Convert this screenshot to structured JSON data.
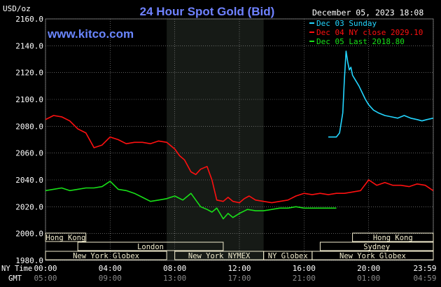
{
  "header": {
    "unit_label": "USD/oz",
    "title": "24 Hour Spot Gold (Bid)",
    "datetime": "December 05, 2023 18:08",
    "site": "www.kitco.com"
  },
  "colors": {
    "background": "#000000",
    "grid": "#9a9a9a",
    "title": "#6f82ff",
    "site": "#6a86ff",
    "shade_night": "#161a16",
    "session_box_fill": "#f3eecf",
    "dec03": "#23d6ff",
    "dec04": "#ff1010",
    "dec05": "#18e018"
  },
  "labels": {
    "ny_time": "NY Time",
    "gmt": "GMT"
  },
  "sessions": [
    {
      "row": 0,
      "name": "Hong Kong",
      "start": 0.0,
      "end": 2.5
    },
    {
      "row": 0,
      "name": "Hong Kong",
      "start": 19.0,
      "end": 24.0
    },
    {
      "row": 1,
      "name": "London",
      "start": 2.0,
      "end": 11.0
    },
    {
      "row": 1,
      "name": "Sydney",
      "start": 17.0,
      "end": 24.0
    },
    {
      "row": 2,
      "name": "New York Globex",
      "start": 0.0,
      "end": 7.5
    },
    {
      "row": 2,
      "name": "New York NYMEX",
      "start": 8.0,
      "end": 13.5
    },
    {
      "row": 2,
      "name": "NY Globex",
      "start": 13.5,
      "end": 16.5
    },
    {
      "row": 2,
      "name": "New York Globex",
      "start": 16.5,
      "end": 24.0
    }
  ],
  "chart_data": {
    "type": "line",
    "title": "24 Hour Spot Gold (Bid)",
    "ylabel": "USD/oz",
    "xlabel": "",
    "ylim": [
      1980,
      2160
    ],
    "xlim": [
      0,
      24
    ],
    "yticks": [
      "1980.0",
      "2000.0",
      "2020.0",
      "2040.0",
      "2060.0",
      "2080.0",
      "2100.0",
      "2120.0",
      "2140.0",
      "2160.0"
    ],
    "xticks_ny": [
      "00:00",
      "04:00",
      "08:00",
      "12:00",
      "16:00",
      "20:00",
      "23:59"
    ],
    "xticks_gmt": [
      "05:00",
      "09:00",
      "13:00",
      "17:00",
      "21:00",
      "01:00",
      "04:59"
    ],
    "shaded_hours": [
      7.5,
      13.5
    ],
    "grid": true,
    "legend_position": "top-right",
    "series": [
      {
        "name": "Dec 03 Sunday",
        "legend": "Dec 03 Sunday",
        "x": [
          17.5,
          18.0,
          18.2,
          18.4,
          18.5,
          18.6,
          18.7,
          18.8,
          18.9,
          19.0,
          19.2,
          19.4,
          19.6,
          19.8,
          20.0,
          20.3,
          20.6,
          21.0,
          21.4,
          21.8,
          22.2,
          22.6,
          23.0,
          23.3,
          23.6,
          23.99
        ],
        "y": [
          2072,
          2072,
          2075,
          2090,
          2115,
          2136,
          2128,
          2122,
          2124,
          2118,
          2114,
          2110,
          2105,
          2100,
          2096,
          2092,
          2090,
          2088,
          2087,
          2086,
          2088,
          2086,
          2085,
          2084,
          2085,
          2086
        ]
      },
      {
        "name": "Dec 04 NY close 2029.10",
        "legend": "Dec 04 NY close 2029.10",
        "x": [
          0.0,
          0.5,
          1.0,
          1.5,
          2.0,
          2.5,
          3.0,
          3.5,
          4.0,
          4.5,
          5.0,
          5.5,
          6.0,
          6.5,
          7.0,
          7.5,
          8.0,
          8.3,
          8.6,
          9.0,
          9.3,
          9.6,
          10.0,
          10.3,
          10.6,
          11.0,
          11.3,
          11.6,
          12.0,
          12.3,
          12.6,
          13.0,
          13.5,
          14.0,
          14.5,
          15.0,
          15.5,
          16.0,
          16.5,
          17.0,
          17.5,
          18.0,
          18.5,
          19.0,
          19.5,
          20.0,
          20.5,
          21.0,
          21.5,
          22.0,
          22.5,
          23.0,
          23.5,
          23.99
        ],
        "y": [
          2085,
          2088,
          2087,
          2084,
          2078,
          2075,
          2064,
          2066,
          2072,
          2070,
          2067,
          2068,
          2068,
          2067,
          2069,
          2068,
          2063,
          2058,
          2055,
          2046,
          2044,
          2048,
          2050,
          2040,
          2025,
          2024,
          2027,
          2024,
          2023,
          2026,
          2028,
          2025,
          2024,
          2023,
          2024,
          2025,
          2028,
          2030,
          2029,
          2030,
          2029,
          2030,
          2030,
          2031,
          2032,
          2040,
          2036,
          2038,
          2036,
          2036,
          2035,
          2037,
          2036,
          2032
        ]
      },
      {
        "name": "Dec 05 Last 2018.80",
        "legend": "Dec 05 Last 2018.80",
        "x": [
          0.0,
          0.5,
          1.0,
          1.5,
          2.0,
          2.5,
          3.0,
          3.5,
          4.0,
          4.5,
          5.0,
          5.5,
          6.0,
          6.5,
          7.0,
          7.5,
          8.0,
          8.5,
          9.0,
          9.3,
          9.6,
          10.0,
          10.3,
          10.6,
          11.0,
          11.3,
          11.6,
          12.0,
          12.5,
          13.0,
          13.5,
          14.0,
          14.5,
          15.0,
          15.5,
          16.0,
          16.5,
          17.0,
          17.5,
          18.0
        ],
        "y": [
          2032,
          2033,
          2034,
          2032,
          2033,
          2034,
          2034,
          2035,
          2039,
          2033,
          2032,
          2030,
          2027,
          2024,
          2025,
          2026,
          2028,
          2025,
          2030,
          2025,
          2020,
          2018,
          2016,
          2019,
          2011,
          2015,
          2012,
          2015,
          2018,
          2017,
          2017,
          2018,
          2019,
          2019,
          2020,
          2019,
          2019,
          2019,
          2019,
          2019
        ]
      }
    ]
  }
}
